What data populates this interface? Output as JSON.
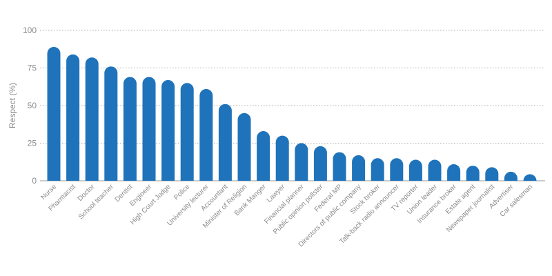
{
  "chart_data": {
    "type": "bar",
    "title": "",
    "xlabel": "",
    "ylabel": "Respect (%)",
    "ylim": [
      0,
      100
    ],
    "yticks": [
      0,
      25,
      50,
      75,
      100
    ],
    "grid": true,
    "bar_color": "#1f73ba",
    "categories": [
      "Nurse",
      "Pharmacist",
      "Doctor",
      "School teacher",
      "Dentist",
      "Engineer",
      "High Court Judge",
      "Police",
      "University lecturer",
      "Accountant",
      "Minister of Religion",
      "Bank Manger",
      "Lawyer",
      "Financial planner",
      "Public opinion pollster",
      "Federal MP",
      "Directors of public company",
      "Stock broker",
      "Talk-back radio announcer",
      "TV reporter",
      "Union leader",
      "Insurance broker",
      "Estate agent",
      "Newspaper journalist",
      "Advertiser",
      "Car salesman"
    ],
    "values": [
      89,
      84,
      82,
      76,
      69,
      69,
      67,
      65,
      61,
      51,
      45,
      33,
      30,
      25,
      23,
      19,
      17,
      15,
      15,
      14,
      14,
      11,
      10,
      9,
      6,
      3
    ]
  }
}
